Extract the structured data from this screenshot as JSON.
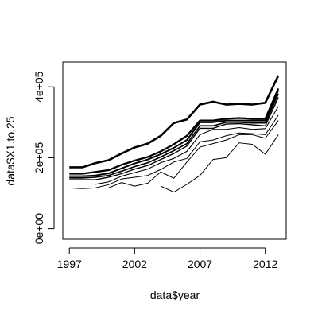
{
  "chart_data": {
    "type": "line",
    "xlabel": "data$year",
    "ylabel": "data$X1.to.25",
    "xlim": [
      1996.5,
      2013.6
    ],
    "ylim": [
      -30000,
      470000
    ],
    "x_ticks": [
      1997,
      2002,
      2007,
      2012
    ],
    "x_tick_labels": [
      "1997",
      "2002",
      "2007",
      "2012"
    ],
    "y_ticks": [
      0,
      200000,
      400000
    ],
    "y_tick_labels": [
      "0e+00",
      "2e+05",
      "4e+05"
    ],
    "grid": false,
    "legend": "none",
    "line_color": "#000000",
    "x": [
      1997,
      1998,
      1999,
      2000,
      2001,
      2002,
      2003,
      2004,
      2005,
      2006,
      2007,
      2008,
      2009,
      2010,
      2011,
      2012,
      2013
    ],
    "series": [
      {
        "values": [
          173000,
          173000,
          185000,
          193000,
          212000,
          229000,
          240000,
          262000,
          298000,
          308000,
          350000,
          358000,
          350000,
          352000,
          350000,
          355000,
          432000
        ],
        "weight": 2.6
      },
      {
        "values": [
          155000,
          155000,
          160000,
          165000,
          180000,
          192000,
          202000,
          218000,
          238000,
          262000,
          305000,
          305000,
          310000,
          312000,
          310000,
          310000,
          395000
        ],
        "weight": 2.3
      },
      {
        "values": [
          148000,
          148000,
          150000,
          156000,
          170000,
          184000,
          195000,
          210000,
          228000,
          250000,
          300000,
          300000,
          305000,
          305000,
          305000,
          305000,
          390000
        ],
        "weight": 2.0
      },
      {
        "values": [
          143000,
          143000,
          145000,
          150000,
          162000,
          175000,
          186000,
          202000,
          220000,
          240000,
          290000,
          290000,
          300000,
          300000,
          298000,
          298000,
          380000
        ],
        "weight": 1.7
      },
      {
        "values": [
          138000,
          138000,
          138000,
          145000,
          155000,
          168000,
          178000,
          195000,
          212000,
          233000,
          283000,
          283000,
          295000,
          296000,
          293000,
          290000,
          370000
        ],
        "weight": 1.4
      },
      {
        "values": [
          null,
          null,
          125000,
          132000,
          148000,
          158000,
          168000,
          186000,
          198000,
          218000,
          265000,
          280000,
          280000,
          285000,
          280000,
          282000,
          345000
        ],
        "weight": 1.1
      },
      {
        "values": [
          115000,
          113000,
          115000,
          124000,
          140000,
          145000,
          150000,
          167000,
          188000,
          198000,
          245000,
          250000,
          262000,
          270000,
          268000,
          265000,
          320000
        ],
        "weight": 1.0
      },
      {
        "values": [
          null,
          null,
          null,
          115000,
          130000,
          120000,
          128000,
          160000,
          142000,
          188000,
          230000,
          240000,
          250000,
          265000,
          265000,
          255000,
          305000
        ],
        "weight": 1.0
      },
      {
        "values": [
          null,
          null,
          null,
          null,
          null,
          null,
          null,
          120000,
          103000,
          125000,
          150000,
          195000,
          200000,
          242000,
          238000,
          210000,
          265000
        ],
        "weight": 1.0
      }
    ]
  }
}
